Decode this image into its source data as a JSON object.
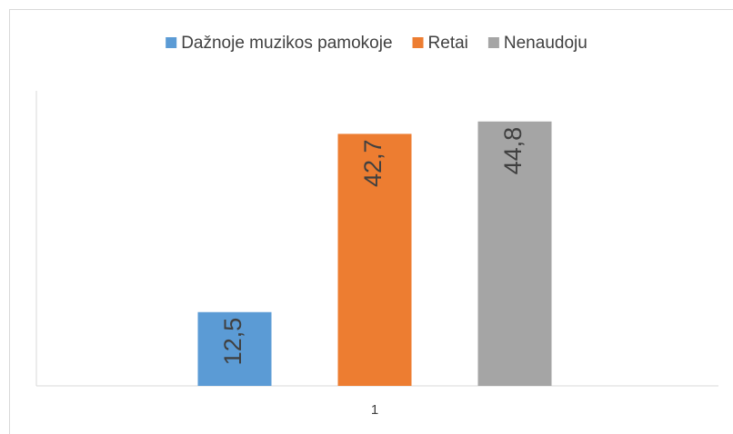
{
  "chart_data": {
    "type": "bar",
    "categories": [
      "1"
    ],
    "series": [
      {
        "name": "Dažnoje muzikos pamokoje",
        "color": "#5b9bd5",
        "values": [
          12.5
        ],
        "value_labels": [
          "12,5"
        ]
      },
      {
        "name": "Retai",
        "color": "#ed7d31",
        "values": [
          42.7
        ],
        "value_labels": [
          "42,7"
        ]
      },
      {
        "name": "Nenaudoju",
        "color": "#a5a5a5",
        "values": [
          44.8
        ],
        "value_labels": [
          "44,8"
        ]
      }
    ],
    "ylim": [
      0,
      50
    ],
    "legend": "top"
  }
}
